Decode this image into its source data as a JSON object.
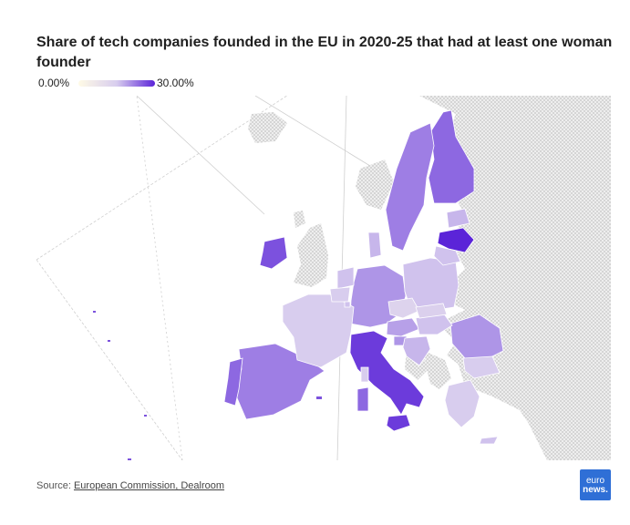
{
  "title": "Share of tech companies founded in the EU in 2020-25 that had at least one woman founder",
  "legend": {
    "min_label": "0.00%",
    "max_label": "30.00%",
    "min_color": "#fffbe6",
    "max_color": "#5b24d8"
  },
  "source": {
    "prefix": "Source: ",
    "link_text": "European Commission, Dealroom"
  },
  "logo": {
    "line1": "euro",
    "line2": "news."
  },
  "colors": {
    "non_eu_land": "#e3e3e3",
    "graticule": "#cccccc",
    "border": "#ffffff"
  },
  "chart_data": {
    "type": "choropleth",
    "unit": "%",
    "scale": [
      0,
      30
    ],
    "countries": [
      {
        "name": "Latvia",
        "value": 30
      },
      {
        "name": "Italy",
        "value": 28
      },
      {
        "name": "Sicily",
        "value": 28
      },
      {
        "name": "Ireland",
        "value": 26
      },
      {
        "name": "Finland",
        "value": 24
      },
      {
        "name": "Sweden",
        "value": 22
      },
      {
        "name": "Spain",
        "value": 22
      },
      {
        "name": "Portugal",
        "value": 24
      },
      {
        "name": "Germany",
        "value": 20
      },
      {
        "name": "Romania",
        "value": 20
      },
      {
        "name": "Austria",
        "value": 19
      },
      {
        "name": "Poland",
        "value": 16
      },
      {
        "name": "France",
        "value": 15
      },
      {
        "name": "Estonia",
        "value": 17
      },
      {
        "name": "Lithuania",
        "value": 16
      },
      {
        "name": "Denmark",
        "value": 17
      },
      {
        "name": "Greece",
        "value": 15
      },
      {
        "name": "Hungary",
        "value": 16
      },
      {
        "name": "Czechia",
        "value": 13
      },
      {
        "name": "Slovakia",
        "value": 14
      },
      {
        "name": "Bulgaria",
        "value": 15
      },
      {
        "name": "Netherlands",
        "value": 16
      },
      {
        "name": "Belgium",
        "value": 15
      },
      {
        "name": "Slovenia",
        "value": 20
      },
      {
        "name": "Croatia",
        "value": 17
      },
      {
        "name": "Sardinia",
        "value": 24
      },
      {
        "name": "Corsica",
        "value": 15
      },
      {
        "name": "Luxembourg",
        "value": 16
      },
      {
        "name": "Cyprus",
        "value": 16
      }
    ]
  }
}
